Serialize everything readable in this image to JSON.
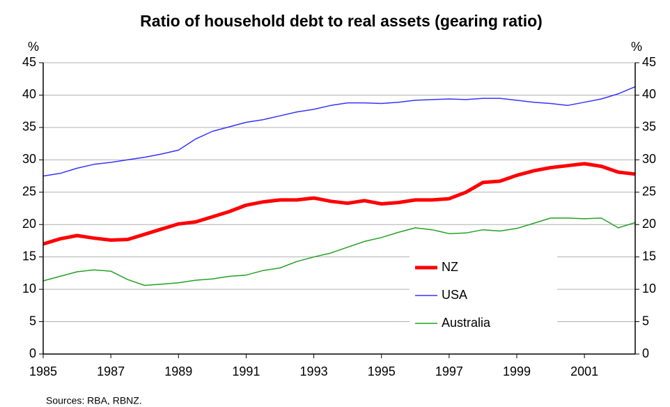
{
  "chart_data": {
    "type": "line",
    "title": "Ratio of household debt to real assets (gearing ratio)",
    "y_label": "%",
    "y2_label": "%",
    "source": "Sources: RBA, RBNZ.",
    "x": [
      1985,
      1985.5,
      1986,
      1986.5,
      1987,
      1987.5,
      1988,
      1988.5,
      1989,
      1989.5,
      1990,
      1990.5,
      1991,
      1991.5,
      1992,
      1992.5,
      1993,
      1993.5,
      1994,
      1994.5,
      1995,
      1995.5,
      1996,
      1996.5,
      1997,
      1997.5,
      1998,
      1998.5,
      1999,
      1999.5,
      2000,
      2000.5,
      2001,
      2001.5,
      2002,
      2002.5
    ],
    "series": [
      {
        "name": "NZ",
        "color": "#ff0000",
        "width": 5,
        "values": [
          17,
          17.8,
          18.3,
          17.9,
          17.6,
          17.7,
          18.5,
          19.3,
          20.1,
          20.4,
          21.2,
          22,
          23,
          23.5,
          23.8,
          23.8,
          24.1,
          23.6,
          23.3,
          23.7,
          23.2,
          23.4,
          23.8,
          23.8,
          24,
          25,
          26.5,
          26.7,
          27.6,
          28.3,
          28.8,
          29.1,
          29.4,
          29,
          28.1,
          27.8
        ]
      },
      {
        "name": "USA",
        "color": "#3333ff",
        "width": 1.5,
        "values": [
          27.5,
          27.9,
          28.7,
          29.3,
          29.6,
          30,
          30.4,
          30.9,
          31.5,
          33.2,
          34.4,
          35.1,
          35.8,
          36.2,
          36.8,
          37.4,
          37.8,
          38.4,
          38.8,
          38.8,
          38.7,
          38.9,
          39.2,
          39.3,
          39.4,
          39.3,
          39.5,
          39.5,
          39.2,
          38.9,
          38.7,
          38.4,
          38.9,
          39.4,
          40.2,
          41.3
        ]
      },
      {
        "name": "Australia",
        "color": "#22a022",
        "width": 1.5,
        "values": [
          11.3,
          12,
          12.7,
          13,
          12.8,
          11.5,
          10.6,
          10.8,
          11,
          11.4,
          11.6,
          12,
          12.2,
          12.9,
          13.3,
          14.3,
          15,
          15.6,
          16.5,
          17.4,
          18,
          18.8,
          19.5,
          19.2,
          18.6,
          18.7,
          19.2,
          19,
          19.4,
          20.2,
          21,
          21,
          20.9,
          21,
          19.5,
          20.3
        ]
      }
    ],
    "xlim": [
      1985,
      2002.5
    ],
    "xticks": [
      1985,
      1987,
      1989,
      1991,
      1993,
      1995,
      1997,
      1999,
      2001
    ],
    "ylim": [
      0,
      45
    ],
    "yticks": [
      0,
      5,
      10,
      15,
      20,
      25,
      30,
      35,
      40,
      45
    ],
    "y2lim": [
      0,
      45
    ],
    "y2ticks": [
      0,
      5,
      10,
      15,
      20,
      25,
      30,
      35,
      40,
      45
    ],
    "grid": true
  }
}
